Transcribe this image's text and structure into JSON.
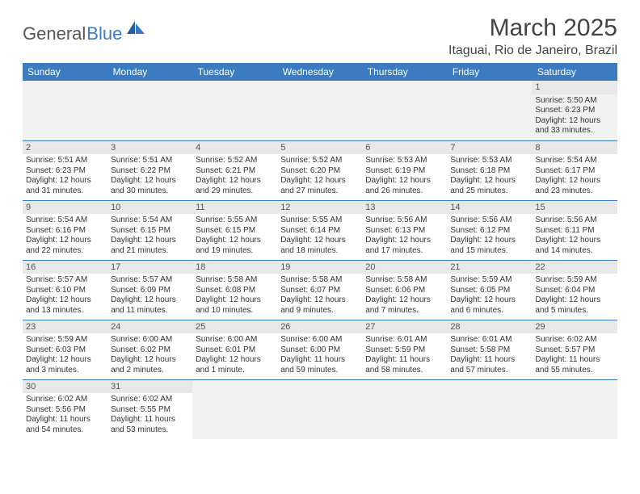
{
  "brand": {
    "word1": "General",
    "word2": "Blue"
  },
  "title": "March 2025",
  "location": "Itaguai, Rio de Janeiro, Brazil",
  "colors": {
    "header_bg": "#3b7bbf",
    "header_text": "#ffffff",
    "daynum_bg": "#e8e8e8",
    "cell_border": "#3b7bbf",
    "empty_bg": "#f1f1f1",
    "body_text": "#333333"
  },
  "weekdays": [
    "Sunday",
    "Monday",
    "Tuesday",
    "Wednesday",
    "Thursday",
    "Friday",
    "Saturday"
  ],
  "weeks": [
    [
      null,
      null,
      null,
      null,
      null,
      null,
      {
        "d": "1",
        "sr": "Sunrise: 5:50 AM",
        "ss": "Sunset: 6:23 PM",
        "dl1": "Daylight: 12 hours",
        "dl2": "and 33 minutes."
      }
    ],
    [
      {
        "d": "2",
        "sr": "Sunrise: 5:51 AM",
        "ss": "Sunset: 6:23 PM",
        "dl1": "Daylight: 12 hours",
        "dl2": "and 31 minutes."
      },
      {
        "d": "3",
        "sr": "Sunrise: 5:51 AM",
        "ss": "Sunset: 6:22 PM",
        "dl1": "Daylight: 12 hours",
        "dl2": "and 30 minutes."
      },
      {
        "d": "4",
        "sr": "Sunrise: 5:52 AM",
        "ss": "Sunset: 6:21 PM",
        "dl1": "Daylight: 12 hours",
        "dl2": "and 29 minutes."
      },
      {
        "d": "5",
        "sr": "Sunrise: 5:52 AM",
        "ss": "Sunset: 6:20 PM",
        "dl1": "Daylight: 12 hours",
        "dl2": "and 27 minutes."
      },
      {
        "d": "6",
        "sr": "Sunrise: 5:53 AM",
        "ss": "Sunset: 6:19 PM",
        "dl1": "Daylight: 12 hours",
        "dl2": "and 26 minutes."
      },
      {
        "d": "7",
        "sr": "Sunrise: 5:53 AM",
        "ss": "Sunset: 6:18 PM",
        "dl1": "Daylight: 12 hours",
        "dl2": "and 25 minutes."
      },
      {
        "d": "8",
        "sr": "Sunrise: 5:54 AM",
        "ss": "Sunset: 6:17 PM",
        "dl1": "Daylight: 12 hours",
        "dl2": "and 23 minutes."
      }
    ],
    [
      {
        "d": "9",
        "sr": "Sunrise: 5:54 AM",
        "ss": "Sunset: 6:16 PM",
        "dl1": "Daylight: 12 hours",
        "dl2": "and 22 minutes."
      },
      {
        "d": "10",
        "sr": "Sunrise: 5:54 AM",
        "ss": "Sunset: 6:15 PM",
        "dl1": "Daylight: 12 hours",
        "dl2": "and 21 minutes."
      },
      {
        "d": "11",
        "sr": "Sunrise: 5:55 AM",
        "ss": "Sunset: 6:15 PM",
        "dl1": "Daylight: 12 hours",
        "dl2": "and 19 minutes."
      },
      {
        "d": "12",
        "sr": "Sunrise: 5:55 AM",
        "ss": "Sunset: 6:14 PM",
        "dl1": "Daylight: 12 hours",
        "dl2": "and 18 minutes."
      },
      {
        "d": "13",
        "sr": "Sunrise: 5:56 AM",
        "ss": "Sunset: 6:13 PM",
        "dl1": "Daylight: 12 hours",
        "dl2": "and 17 minutes."
      },
      {
        "d": "14",
        "sr": "Sunrise: 5:56 AM",
        "ss": "Sunset: 6:12 PM",
        "dl1": "Daylight: 12 hours",
        "dl2": "and 15 minutes."
      },
      {
        "d": "15",
        "sr": "Sunrise: 5:56 AM",
        "ss": "Sunset: 6:11 PM",
        "dl1": "Daylight: 12 hours",
        "dl2": "and 14 minutes."
      }
    ],
    [
      {
        "d": "16",
        "sr": "Sunrise: 5:57 AM",
        "ss": "Sunset: 6:10 PM",
        "dl1": "Daylight: 12 hours",
        "dl2": "and 13 minutes."
      },
      {
        "d": "17",
        "sr": "Sunrise: 5:57 AM",
        "ss": "Sunset: 6:09 PM",
        "dl1": "Daylight: 12 hours",
        "dl2": "and 11 minutes."
      },
      {
        "d": "18",
        "sr": "Sunrise: 5:58 AM",
        "ss": "Sunset: 6:08 PM",
        "dl1": "Daylight: 12 hours",
        "dl2": "and 10 minutes."
      },
      {
        "d": "19",
        "sr": "Sunrise: 5:58 AM",
        "ss": "Sunset: 6:07 PM",
        "dl1": "Daylight: 12 hours",
        "dl2": "and 9 minutes."
      },
      {
        "d": "20",
        "sr": "Sunrise: 5:58 AM",
        "ss": "Sunset: 6:06 PM",
        "dl1": "Daylight: 12 hours",
        "dl2": "and 7 minutes."
      },
      {
        "d": "21",
        "sr": "Sunrise: 5:59 AM",
        "ss": "Sunset: 6:05 PM",
        "dl1": "Daylight: 12 hours",
        "dl2": "and 6 minutes."
      },
      {
        "d": "22",
        "sr": "Sunrise: 5:59 AM",
        "ss": "Sunset: 6:04 PM",
        "dl1": "Daylight: 12 hours",
        "dl2": "and 5 minutes."
      }
    ],
    [
      {
        "d": "23",
        "sr": "Sunrise: 5:59 AM",
        "ss": "Sunset: 6:03 PM",
        "dl1": "Daylight: 12 hours",
        "dl2": "and 3 minutes."
      },
      {
        "d": "24",
        "sr": "Sunrise: 6:00 AM",
        "ss": "Sunset: 6:02 PM",
        "dl1": "Daylight: 12 hours",
        "dl2": "and 2 minutes."
      },
      {
        "d": "25",
        "sr": "Sunrise: 6:00 AM",
        "ss": "Sunset: 6:01 PM",
        "dl1": "Daylight: 12 hours",
        "dl2": "and 1 minute."
      },
      {
        "d": "26",
        "sr": "Sunrise: 6:00 AM",
        "ss": "Sunset: 6:00 PM",
        "dl1": "Daylight: 11 hours",
        "dl2": "and 59 minutes."
      },
      {
        "d": "27",
        "sr": "Sunrise: 6:01 AM",
        "ss": "Sunset: 5:59 PM",
        "dl1": "Daylight: 11 hours",
        "dl2": "and 58 minutes."
      },
      {
        "d": "28",
        "sr": "Sunrise: 6:01 AM",
        "ss": "Sunset: 5:58 PM",
        "dl1": "Daylight: 11 hours",
        "dl2": "and 57 minutes."
      },
      {
        "d": "29",
        "sr": "Sunrise: 6:02 AM",
        "ss": "Sunset: 5:57 PM",
        "dl1": "Daylight: 11 hours",
        "dl2": "and 55 minutes."
      }
    ],
    [
      {
        "d": "30",
        "sr": "Sunrise: 6:02 AM",
        "ss": "Sunset: 5:56 PM",
        "dl1": "Daylight: 11 hours",
        "dl2": "and 54 minutes."
      },
      {
        "d": "31",
        "sr": "Sunrise: 6:02 AM",
        "ss": "Sunset: 5:55 PM",
        "dl1": "Daylight: 11 hours",
        "dl2": "and 53 minutes."
      },
      null,
      null,
      null,
      null,
      null
    ]
  ]
}
